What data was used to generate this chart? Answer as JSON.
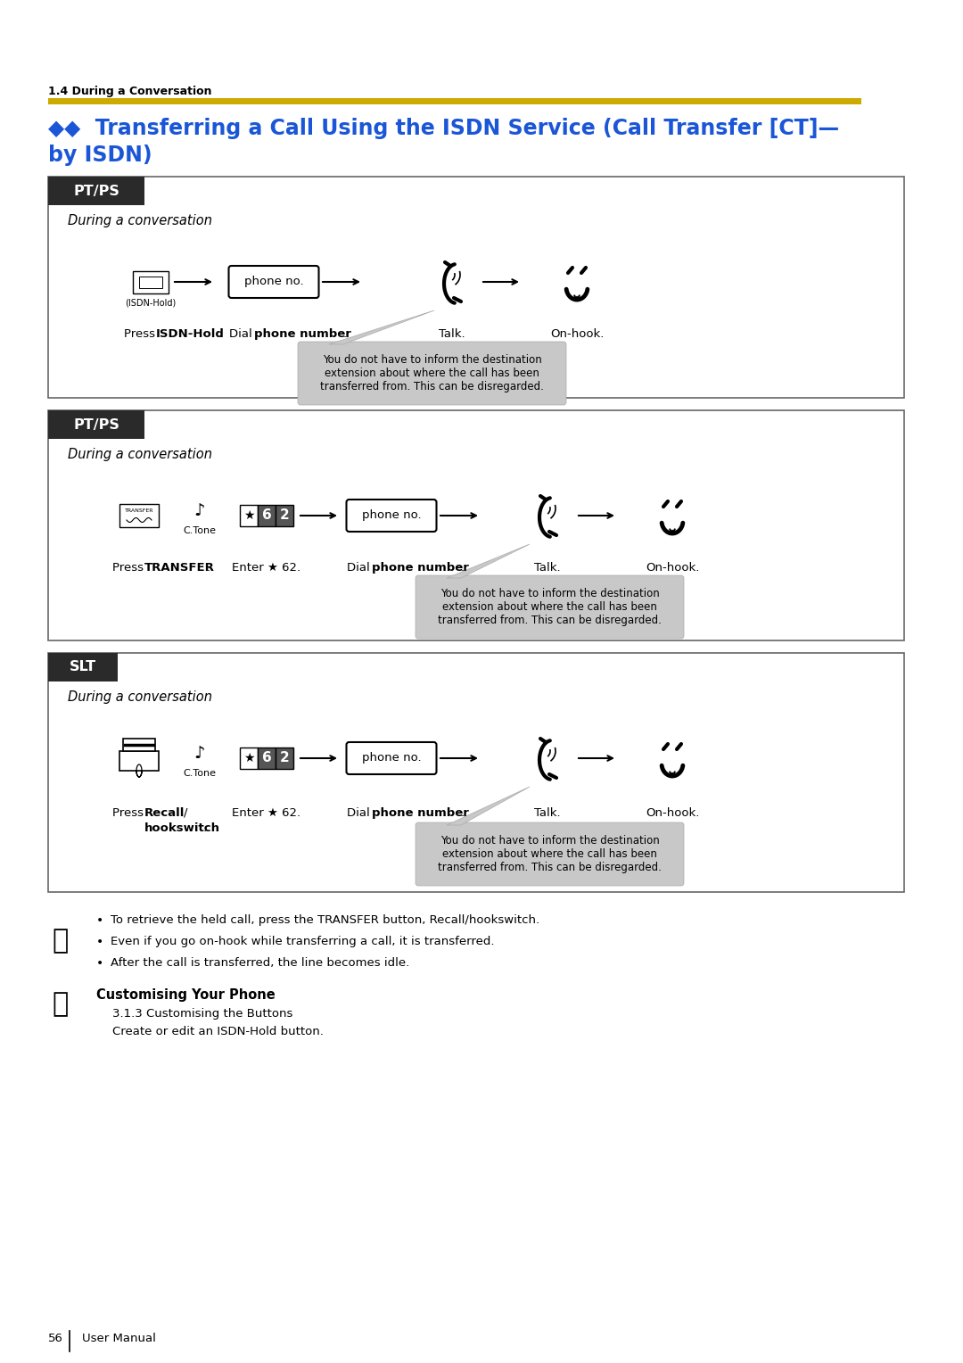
{
  "page_number": "56",
  "page_label": "User Manual",
  "section_label": "1.4 During a Conversation",
  "title_line1": "◆◆  Transferring a Call Using the ISDN Service (Call Transfer [CT]—",
  "title_line2": "by ISDN)",
  "title_color": "#1a56d6",
  "gold_bar_color": "#ccaa00",
  "bg_color": "#ffffff",
  "header_bg": "#2a2a2a",
  "header_text_color": "#ffffff",
  "italic_text": "During a conversation",
  "note_bg": "#c8c8c8",
  "note_text": "You do not have to inform the destination\nextension about where the call has been\ntransferred from. This can be disregarded.",
  "bullets": [
    "To retrieve the held call, press the TRANSFER button, Recall/hookswitch.",
    "Even if you go on-hook while transferring a call, it is transferred.",
    "After the call is transferred, the line becomes idle."
  ],
  "customising_header": "Customising Your Phone",
  "customising_line1": "3.1.3 Customising the Buttons",
  "customising_line2": "Create or edit an ISDN-Hold button."
}
